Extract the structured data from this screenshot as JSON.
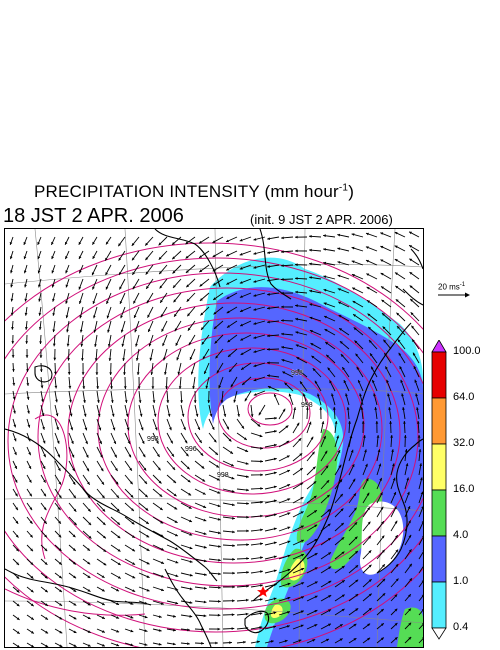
{
  "title": {
    "main": "PRECIPITATION INTENSITY (mm hour",
    "exp": "-1",
    "close": ")"
  },
  "valid_time": "18 JST 2 APR. 2006",
  "init_time": "(init. 9 JST 2 APR. 2006)",
  "reference_vector": {
    "label": "20 ms",
    "exp": "-1"
  },
  "colorbar": {
    "levels": [
      "100.0",
      "64.0",
      "32.0",
      "16.0",
      "4.0",
      "1.0",
      "0.4"
    ],
    "colors": [
      "#e60000",
      "#ff9933",
      "#ffff66",
      "#55dd55",
      "#5566ff",
      "#55eeff"
    ],
    "top_arrow_color": "#cc33ff",
    "bottom_arrow_color": "#ffffff"
  },
  "map": {
    "isobar_labels": [
      "998",
      "996",
      "998",
      "998",
      "998"
    ],
    "colors": {
      "isobar": "#d0107a",
      "coast": "#000000",
      "graticule": "#888888",
      "wind": "#000000",
      "marker": "#ff0000"
    },
    "marker_icon": "red-star-icon"
  }
}
